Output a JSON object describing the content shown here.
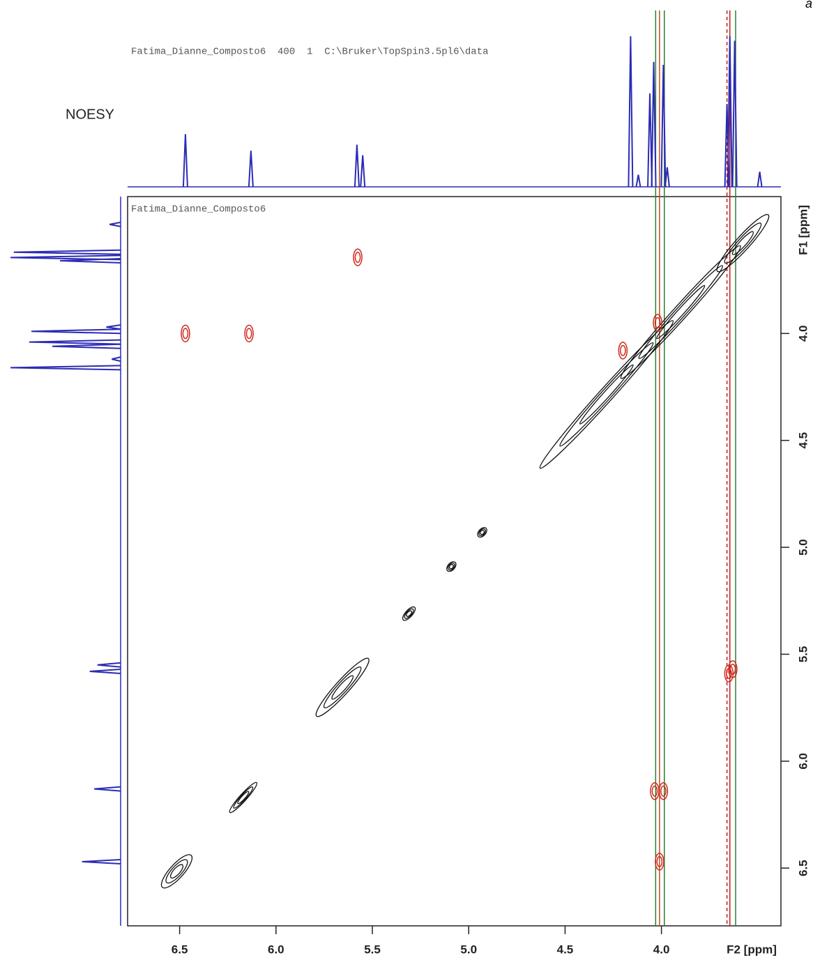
{
  "chart_data": {
    "type": "nmr2d",
    "title": "NOESY",
    "panel_label": "a",
    "header": "Fatima_Dianne_Composto6  400  1  C:\\Bruker\\TopSpin3.5pl6\\data",
    "inner_label": "Fatima_Dianne_Composto6",
    "x_label": "F2 [ppm]",
    "y_label": "F1 [ppm]",
    "xlim": [
      6.77,
      3.38
    ],
    "ylim": [
      3.36,
      6.77
    ],
    "xticks": [
      6.5,
      {
        "value": 6,
        "label": "6.0"
      },
      5.5,
      {
        "value": 5,
        "label": "5.0"
      },
      4.5,
      {
        "value": 4,
        "label": "4.0"
      }
    ],
    "yticks": [
      {
        "value": 4,
        "label": "4.0"
      },
      4.5,
      {
        "value": 5,
        "label": "5.0"
      },
      5.5,
      {
        "value": 6,
        "label": "6.0"
      },
      6.5
    ],
    "spectrum_color": "#2b2bb5",
    "spectrum_peaks": {
      "ppm": [
        6.47,
        6.13,
        5.58,
        5.55,
        4.16,
        4.12,
        4.06,
        4.04,
        3.99,
        3.97,
        3.66,
        3.645,
        3.62,
        3.49
      ],
      "intensity": [
        35,
        24,
        28,
        21,
        100,
        8,
        62,
        83,
        81,
        13,
        55,
        100,
        97,
        10
      ]
    },
    "diagonal_color": "#111111",
    "diagonal_peaks": [
      {
        "start": 6.58,
        "end": 6.45
      },
      {
        "start": 6.23,
        "end": 6.11
      },
      {
        "start": 5.78,
        "end": 5.53
      },
      {
        "start": 5.33,
        "end": 5.29
      },
      {
        "start": 5.1,
        "end": 5.08
      },
      {
        "start": 4.94,
        "end": 4.92
      },
      {
        "start": 4.62,
        "end": 3.95
      },
      {
        "start": 4.2,
        "end": 3.6
      },
      {
        "start": 3.7,
        "end": 3.455
      }
    ],
    "cross_color": "#d02a1e",
    "cross_peaks": {
      "x": [
        5.576,
        6.47,
        6.14,
        3.65,
        3.63,
        4.035,
        3.99,
        4.01,
        4.2,
        4.02
      ],
      "y": [
        3.644,
        4.0,
        4.0,
        5.59,
        5.57,
        6.14,
        6.14,
        6.47,
        4.08,
        3.95
      ]
    },
    "guide_lines": [
      {
        "ppm": 4.03,
        "color": "#2e7d32",
        "dashed": false
      },
      {
        "ppm": 4.01,
        "color": "#c0501e",
        "dashed": false
      },
      {
        "ppm": 3.985,
        "color": "#2e7d32",
        "dashed": false
      },
      {
        "ppm": 3.66,
        "color": "#c0201e",
        "dashed": true
      },
      {
        "ppm": 3.645,
        "color": "#c0201e",
        "dashed": false
      },
      {
        "ppm": 3.615,
        "color": "#2e7d32",
        "dashed": false
      }
    ]
  }
}
